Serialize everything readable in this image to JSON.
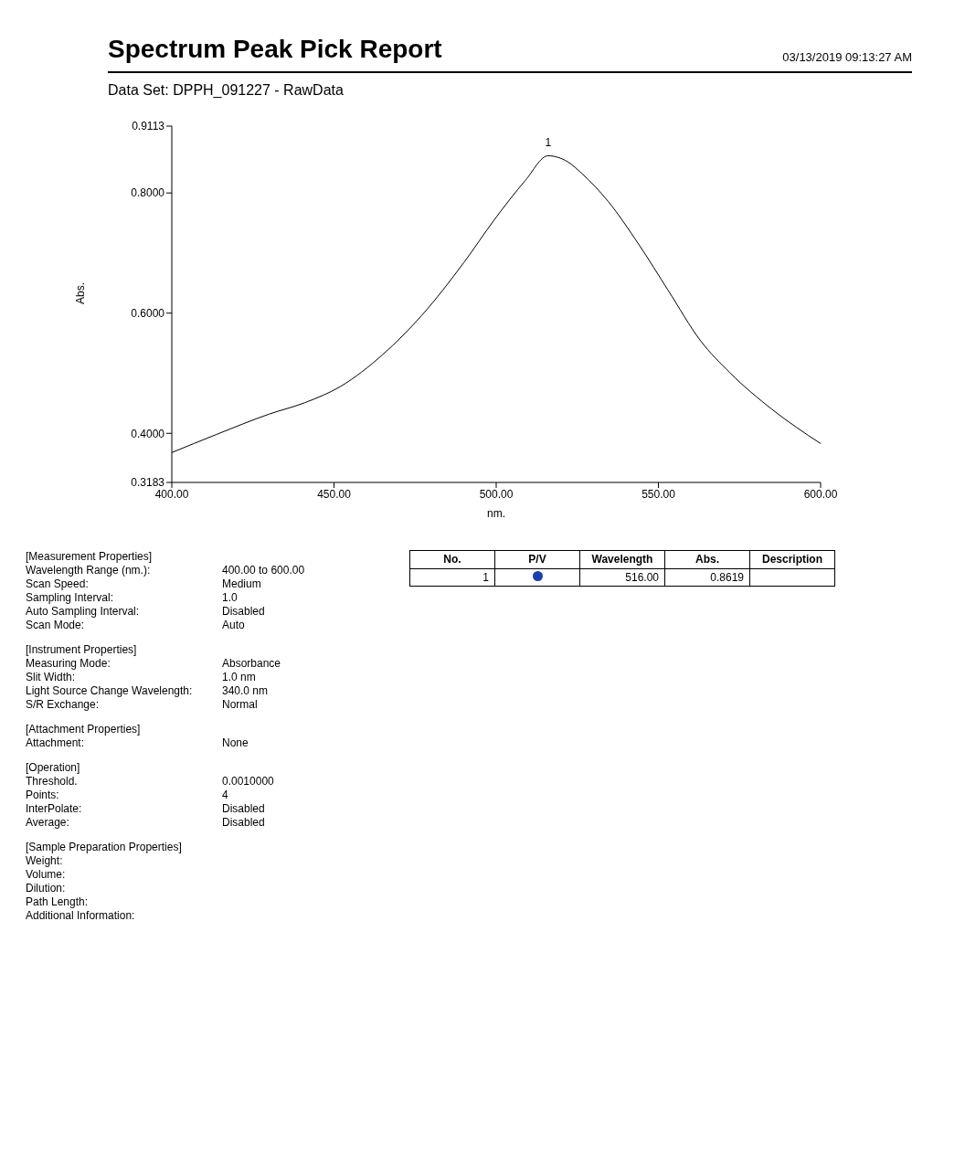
{
  "chart_data": {
    "type": "line",
    "title": "Spectrum Peak Pick Report",
    "subtitle": "Data Set: DPPH_091227 - RawData",
    "xlabel": "nm.",
    "ylabel": "Abs.",
    "x": [
      400,
      413.7,
      430,
      441,
      452,
      465,
      477,
      490,
      499.5,
      509,
      516,
      522,
      526.5,
      534.5,
      544,
      553,
      563,
      572,
      585,
      600
    ],
    "series": [
      {
        "color": "#000000",
        "values": [
          0.368,
          0.398,
          0.432,
          0.451,
          0.478,
          0.531,
          0.596,
          0.684,
          0.756,
          0.821,
          0.8619,
          0.852,
          0.832,
          0.786,
          0.714,
          0.638,
          0.554,
          0.501,
          0.44,
          0.383
        ]
      }
    ],
    "xlim": [
      400,
      600
    ],
    "ylim": [
      0.3183,
      0.9113
    ],
    "xticks": [
      {
        "value": 400,
        "label": "400.00"
      },
      {
        "value": 450,
        "label": "450.00"
      },
      {
        "value": 500,
        "label": "500.00"
      },
      {
        "value": 550,
        "label": "550.00"
      },
      {
        "value": 600,
        "label": "600.00"
      }
    ],
    "yticks": [
      {
        "value": 0.3183,
        "label": "0.3183"
      },
      {
        "value": 0.4,
        "label": "0.4000"
      },
      {
        "value": 0.6,
        "label": "0.6000"
      },
      {
        "value": 0.8,
        "label": "0.8000"
      },
      {
        "value": 0.9113,
        "label": "0.9113"
      }
    ],
    "marker": "none",
    "annotations": [
      "03/13/2019  09:13:27 AM",
      "[Measurement Properties]",
      "Wavelength Range (nm.):",
      "400.00 to 600.00",
      "Scan Speed:",
      "Medium",
      "Sampling Interval:",
      "1.0",
      "Auto Sampling Interval:",
      "Disabled",
      "Scan Mode:",
      "Auto",
      "[Instrument Properties]",
      "Measuring Mode:",
      "Absorbance",
      "Slit Width:",
      "1.0 nm",
      "Light Source Change Wavelength:",
      "340.0 nm",
      "S/R Exchange:",
      "Normal",
      "[Attachment Properties]",
      "Attachment:",
      "None",
      "[Operation]",
      "Threshold.",
      "0.0010000",
      "Points:",
      "4",
      "InterPolate:",
      "Disabled",
      "Average:",
      "Disabled",
      "[Sample Preparation Properties]",
      "Weight:",
      "Volume:",
      "Dilution:",
      "Path Length:",
      "Additional Information:",
      "No.",
      "P/V",
      "Wavelength",
      "Abs.",
      "Description",
      "1",
      "516.00",
      "0.8619",
      {
        "text": "1",
        "x": 516,
        "y": 0.8619
      }
    ]
  }
}
